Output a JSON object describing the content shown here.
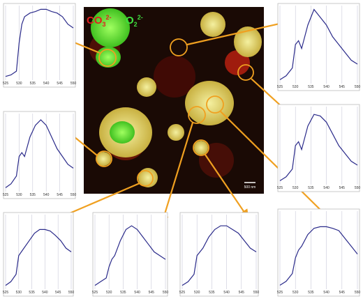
{
  "legend": {
    "carbonate": {
      "base": "CO",
      "sub": "3",
      "sup": "2-"
    },
    "peroxide": {
      "base": "O",
      "sub": "2",
      "sup": "2-"
    }
  },
  "scale_bar": "500 nm",
  "chart_data": [
    {
      "type": "line",
      "x": [
        525,
        527,
        529,
        530,
        531,
        532,
        534,
        536,
        538,
        540,
        542,
        544,
        546,
        548,
        550
      ],
      "values": [
        0.05,
        0.07,
        0.12,
        0.5,
        0.75,
        0.85,
        0.9,
        0.92,
        0.95,
        0.95,
        0.92,
        0.9,
        0.85,
        0.75,
        0.7
      ],
      "color": "#2a2a8a",
      "xlim": [
        525,
        550
      ],
      "ylim": [
        0,
        1
      ],
      "xticks": [
        525,
        530,
        535,
        540,
        545,
        550
      ],
      "grid": true
    },
    {
      "type": "line",
      "x": [
        525,
        527,
        529,
        530,
        531,
        532,
        534,
        536,
        538,
        540,
        542,
        544,
        546,
        548,
        550
      ],
      "values": [
        0.05,
        0.1,
        0.2,
        0.5,
        0.55,
        0.45,
        0.75,
        0.95,
        0.85,
        0.75,
        0.6,
        0.5,
        0.4,
        0.3,
        0.25
      ],
      "color": "#2a2a8a",
      "xlim": [
        525,
        550
      ],
      "ylim": [
        0,
        1
      ],
      "xticks": [
        525,
        530,
        535,
        540,
        545,
        550
      ],
      "grid": true
    },
    {
      "type": "line",
      "x": [
        525,
        527,
        529,
        530,
        531,
        532,
        534,
        536,
        538,
        540,
        542,
        544,
        546,
        548,
        550
      ],
      "values": [
        0.05,
        0.1,
        0.2,
        0.45,
        0.5,
        0.45,
        0.7,
        0.85,
        0.92,
        0.85,
        0.7,
        0.55,
        0.45,
        0.35,
        0.3
      ],
      "color": "#2a2a8a",
      "xlim": [
        525,
        550
      ],
      "ylim": [
        0,
        1
      ],
      "xticks": [
        525,
        530,
        535,
        540,
        545,
        550
      ],
      "grid": true
    },
    {
      "type": "line",
      "x": [
        525,
        527,
        529,
        530,
        531,
        532,
        534,
        536,
        538,
        540,
        542,
        544,
        546,
        548,
        550
      ],
      "values": [
        0.05,
        0.1,
        0.2,
        0.5,
        0.55,
        0.45,
        0.75,
        0.9,
        0.88,
        0.8,
        0.65,
        0.5,
        0.4,
        0.3,
        0.25
      ],
      "color": "#2a2a8a",
      "xlim": [
        525,
        550
      ],
      "ylim": [
        0,
        1
      ],
      "xticks": [
        525,
        530,
        535,
        540,
        545,
        550
      ],
      "grid": true
    },
    {
      "type": "line",
      "x": [
        525,
        527,
        529,
        530,
        531,
        532,
        534,
        536,
        538,
        540,
        542,
        544,
        546,
        548,
        550
      ],
      "values": [
        0.05,
        0.1,
        0.2,
        0.45,
        0.5,
        0.55,
        0.65,
        0.75,
        0.8,
        0.8,
        0.78,
        0.72,
        0.65,
        0.55,
        0.5
      ],
      "color": "#2a2a8a",
      "xlim": [
        525,
        550
      ],
      "ylim": [
        0,
        1
      ],
      "xticks": [
        525,
        530,
        535,
        540,
        545,
        550
      ],
      "grid": true
    },
    {
      "type": "line",
      "x": [
        525,
        527,
        529,
        530,
        531,
        532,
        534,
        536,
        538,
        540,
        542,
        544,
        546,
        548,
        550
      ],
      "values": [
        0.05,
        0.1,
        0.15,
        0.3,
        0.4,
        0.45,
        0.65,
        0.8,
        0.85,
        0.8,
        0.7,
        0.6,
        0.5,
        0.45,
        0.4
      ],
      "color": "#2a2a8a",
      "xlim": [
        525,
        550
      ],
      "ylim": [
        0,
        1
      ],
      "xticks": [
        525,
        530,
        535,
        540,
        545,
        550
      ],
      "grid": true
    },
    {
      "type": "line",
      "x": [
        525,
        527,
        529,
        530,
        531,
        532,
        534,
        536,
        538,
        540,
        542,
        544,
        546,
        548,
        550
      ],
      "values": [
        0.05,
        0.1,
        0.2,
        0.45,
        0.5,
        0.55,
        0.7,
        0.8,
        0.85,
        0.85,
        0.8,
        0.75,
        0.65,
        0.55,
        0.5
      ],
      "color": "#2a2a8a",
      "xlim": [
        525,
        550
      ],
      "ylim": [
        0,
        1
      ],
      "xticks": [
        525,
        530,
        535,
        540,
        545,
        550
      ],
      "grid": true
    },
    {
      "type": "line",
      "x": [
        525,
        527,
        529,
        530,
        531,
        532,
        534,
        536,
        538,
        540,
        542,
        544,
        546,
        548,
        550
      ],
      "values": [
        0.05,
        0.1,
        0.2,
        0.4,
        0.5,
        0.55,
        0.7,
        0.78,
        0.8,
        0.8,
        0.78,
        0.75,
        0.65,
        0.55,
        0.45
      ],
      "color": "#2a2a8a",
      "xlim": [
        525,
        550
      ],
      "ylim": [
        0,
        1
      ],
      "xticks": [
        525,
        530,
        535,
        540,
        545,
        550
      ],
      "grid": true
    }
  ]
}
